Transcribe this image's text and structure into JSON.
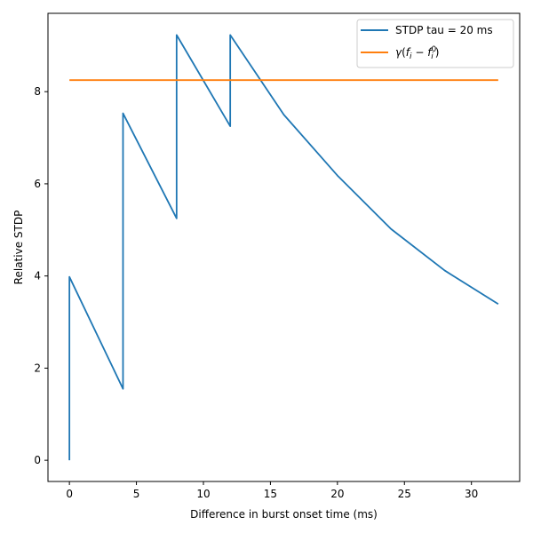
{
  "chart_data": {
    "type": "line",
    "xlabel": "Difference in burst onset time (ms)",
    "ylabel": "Relative STDP",
    "xlim": [
      -1.6,
      33.6
    ],
    "ylim": [
      -0.46,
      9.7
    ],
    "xticks": [
      0,
      5,
      10,
      15,
      20,
      25,
      30
    ],
    "yticks": [
      0,
      2,
      4,
      6,
      8
    ],
    "grid": false,
    "legend_position": "top-right",
    "series": [
      {
        "name": "STDP tau = 20 ms",
        "color": "#1f77b4",
        "x": [
          0,
          0.0001,
          4,
          4.0001,
          8,
          8.0001,
          12,
          12.0001,
          16,
          20,
          24,
          28,
          32
        ],
        "y": [
          0,
          3.98,
          1.55,
          7.53,
          5.25,
          9.23,
          7.25,
          9.23,
          7.5,
          6.18,
          5.02,
          4.12,
          3.39
        ]
      },
      {
        "name": "γ(f_i − f_i^0)",
        "color": "#ff7f0e",
        "x": [
          0,
          32
        ],
        "y": [
          8.25,
          8.25
        ]
      }
    ]
  }
}
